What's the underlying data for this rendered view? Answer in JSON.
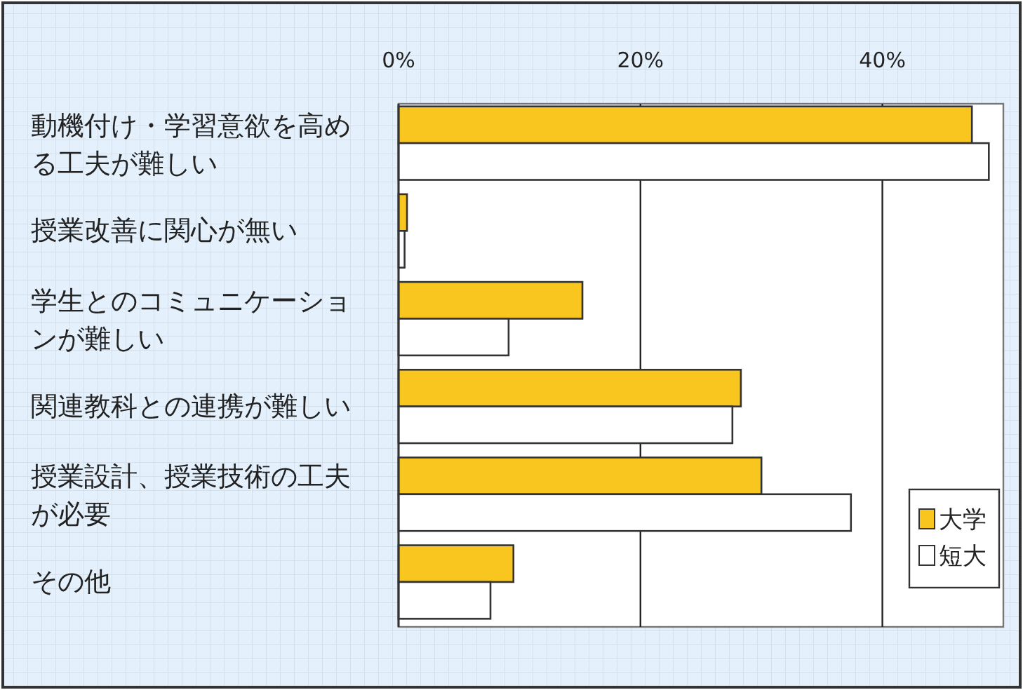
{
  "chart_data": {
    "type": "bar",
    "orientation": "horizontal",
    "categories": [
      "動機付け・学習意欲を高める工夫が難しい",
      "授業改善に関心が無い",
      "学生とのコミュニケーションが難しい",
      "関連教科との連携が難しい",
      "授業設計、授業技術の工夫が必要",
      "その他"
    ],
    "series": [
      {
        "name": "大学",
        "color": "#f9c51f",
        "values": [
          47.4,
          0.7,
          15.2,
          28.3,
          30.0,
          9.5
        ]
      },
      {
        "name": "短大",
        "color": "#ffffff",
        "values": [
          48.8,
          0.5,
          9.1,
          27.6,
          37.4,
          7.6
        ]
      }
    ],
    "xlim": [
      0,
      50
    ],
    "xticks": [
      {
        "value": 0,
        "label": "0%"
      },
      {
        "value": 20,
        "label": "20%"
      },
      {
        "value": 40,
        "label": "40%"
      }
    ],
    "grid": "x",
    "legend": "bottom right"
  }
}
